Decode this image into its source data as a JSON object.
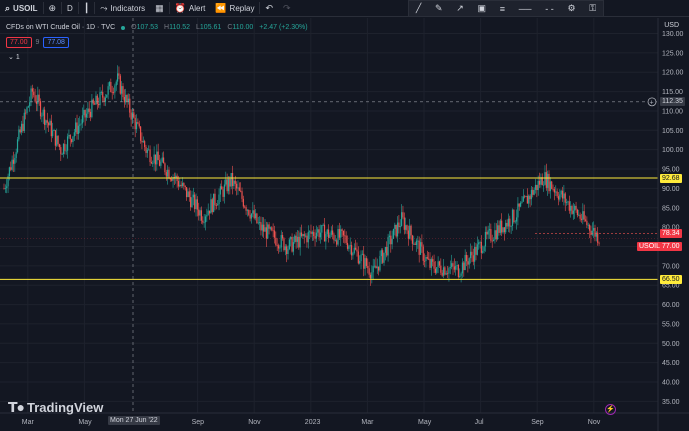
{
  "toolbar": {
    "symbol": "USOIL",
    "interval": "D",
    "indicators": "Indicators",
    "alert": "Alert",
    "replay": "Replay"
  },
  "legend": {
    "title": "CFDs on WTI Crude Oil · 1D · TVC",
    "open": "107.53",
    "high": "110.52",
    "low": "105.61",
    "close": "110.00",
    "change": "+2.47 (+2.30%)",
    "sell": "77.00",
    "spread": "9",
    "buy": "77.08",
    "collapsed_count": "1"
  },
  "axis": {
    "currency": "USD",
    "y_ticks": [
      "130.00",
      "125.00",
      "120.00",
      "115.00",
      "110.00",
      "105.00",
      "100.00",
      "95.00",
      "90.00",
      "85.00",
      "80.00",
      "75.00",
      "70.00",
      "65.00",
      "60.00",
      "55.00",
      "50.00",
      "45.00",
      "40.00",
      "35.00"
    ],
    "x_ticks": [
      "Mar",
      "May",
      "Sep",
      "Nov",
      "2023",
      "Mar",
      "May",
      "Jul",
      "Sep",
      "Nov"
    ],
    "crosshair_date": "Mon 27 Jun '22",
    "crosshair_price": "112.35"
  },
  "levels": {
    "resistance": "92.68",
    "support": "66.50",
    "last_close": "78.34",
    "current": "77.00",
    "symbol_tag": "USOIL"
  },
  "watermark": "TradingView",
  "colors": {
    "up": "#26a69a",
    "down": "#ef5350",
    "level_line": "#ffeb3b",
    "current_tag": "#f23645"
  },
  "chart_data": {
    "type": "line",
    "title": "CFDs on WTI Crude Oil · 1D · TVC",
    "ylabel": "USD",
    "ylim": [
      32,
      134
    ],
    "x": [
      "2022-02",
      "2022-03",
      "2022-04",
      "2022-05",
      "2022-06",
      "2022-07",
      "2022-08",
      "2022-09",
      "2022-10",
      "2022-11",
      "2022-12",
      "2023-01",
      "2023-02",
      "2023-03",
      "2023-04",
      "2023-05",
      "2023-06",
      "2023-07",
      "2023-08",
      "2023-09",
      "2023-10",
      "2023-11"
    ],
    "series": [
      {
        "values": [
          90,
          115,
          100,
          110,
          118,
          100,
          93,
          83,
          92,
          80,
          75,
          79,
          77,
          68,
          82,
          70,
          69,
          77,
          83,
          93,
          85,
          77
        ]
      }
    ]
  }
}
